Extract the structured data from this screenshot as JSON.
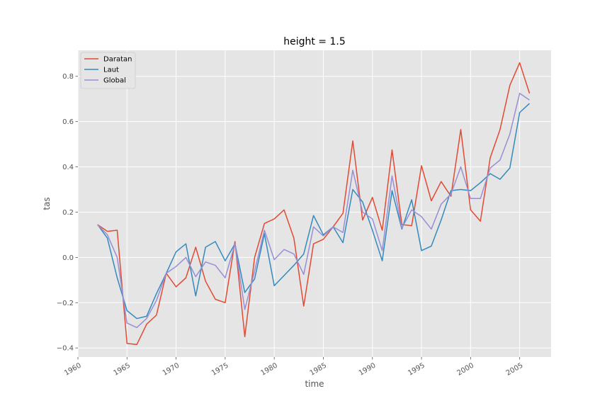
{
  "chart_data": {
    "type": "line",
    "title": "height = 1.5",
    "xlabel": "time",
    "ylabel": "tas",
    "xlim": [
      1960,
      2008.2
    ],
    "ylim": [
      -0.44,
      0.915
    ],
    "xticks": [
      1960,
      1965,
      1970,
      1975,
      1980,
      1985,
      1990,
      1995,
      2000,
      2005
    ],
    "yticks": [
      -0.4,
      -0.2,
      0.0,
      0.2,
      0.4,
      0.6,
      0.8
    ],
    "ytick_labels": [
      "−0.4",
      "−0.2",
      "0.0",
      "0.2",
      "0.4",
      "0.6",
      "0.8"
    ],
    "grid": true,
    "legend_position": "top-left",
    "x": [
      1962,
      1963,
      1964,
      1965,
      1966,
      1967,
      1968,
      1969,
      1970,
      1971,
      1972,
      1973,
      1974,
      1975,
      1976,
      1977,
      1978,
      1979,
      1980,
      1981,
      1982,
      1983,
      1984,
      1985,
      1986,
      1987,
      1988,
      1989,
      1990,
      1991,
      1992,
      1993,
      1994,
      1995,
      1996,
      1997,
      1998,
      1999,
      2000,
      2001,
      2002,
      2003,
      2004,
      2005,
      2006
    ],
    "series": [
      {
        "name": "Daratan",
        "color": "#E24A33",
        "values": [
          0.145,
          0.115,
          0.12,
          -0.38,
          -0.385,
          -0.295,
          -0.255,
          -0.07,
          -0.13,
          -0.09,
          0.045,
          -0.105,
          -0.185,
          -0.2,
          0.07,
          -0.35,
          0.0,
          0.15,
          0.17,
          0.21,
          0.085,
          -0.215,
          0.06,
          0.08,
          0.135,
          0.195,
          0.515,
          0.165,
          0.265,
          0.12,
          0.475,
          0.145,
          0.14,
          0.405,
          0.25,
          0.335,
          0.27,
          0.565,
          0.21,
          0.16,
          0.44,
          0.565,
          0.76,
          0.86,
          0.725
        ]
      },
      {
        "name": "Laut",
        "color": "#348ABD",
        "values": [
          0.145,
          0.085,
          -0.09,
          -0.235,
          -0.27,
          -0.26,
          -0.16,
          -0.07,
          0.025,
          0.06,
          -0.17,
          0.045,
          0.07,
          -0.015,
          0.06,
          -0.155,
          -0.095,
          0.105,
          -0.125,
          -0.08,
          -0.035,
          0.015,
          0.185,
          0.1,
          0.135,
          0.065,
          0.3,
          0.245,
          0.12,
          -0.015,
          0.295,
          0.125,
          0.255,
          0.03,
          0.05,
          0.165,
          0.295,
          0.3,
          0.295,
          0.33,
          0.37,
          0.345,
          0.395,
          0.64,
          0.68
        ]
      },
      {
        "name": "Global",
        "color": "#988ED5",
        "values": [
          0.145,
          0.1,
          0.0,
          -0.29,
          -0.31,
          -0.27,
          -0.19,
          -0.07,
          -0.04,
          0.0,
          -0.085,
          -0.02,
          -0.035,
          -0.09,
          0.06,
          -0.23,
          -0.06,
          0.12,
          -0.01,
          0.035,
          0.015,
          -0.075,
          0.135,
          0.095,
          0.135,
          0.11,
          0.385,
          0.2,
          0.17,
          0.03,
          0.36,
          0.13,
          0.21,
          0.18,
          0.125,
          0.235,
          0.28,
          0.4,
          0.26,
          0.26,
          0.395,
          0.43,
          0.545,
          0.725,
          0.695
        ]
      }
    ]
  }
}
